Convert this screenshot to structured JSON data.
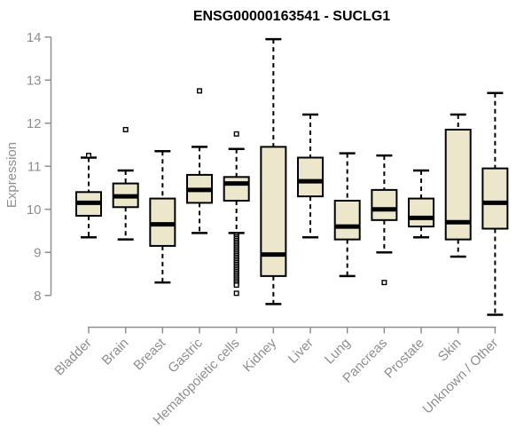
{
  "chart_data": {
    "type": "boxplot",
    "title": "ENSG00000163541 - SUCLG1",
    "ylabel": "Expression",
    "xlabel": "",
    "grid": false,
    "legend": "none",
    "ylim": [
      7.4,
      14.1
    ],
    "y_ticks": [
      8,
      9,
      10,
      11,
      12,
      13,
      14
    ],
    "categories": [
      "Bladder",
      "Brain",
      "Breast",
      "Gastric",
      "Hematopoietic cells",
      "Kidney",
      "Liver",
      "Lung",
      "Pancreas",
      "Prostate",
      "Skin",
      "Unknown / Other"
    ],
    "boxes": [
      {
        "name": "Bladder",
        "low": 9.35,
        "q1": 9.85,
        "median": 10.15,
        "q3": 10.4,
        "high": 11.2,
        "outliers": [
          11.25
        ]
      },
      {
        "name": "Brain",
        "low": 9.3,
        "q1": 10.05,
        "median": 10.3,
        "q3": 10.6,
        "high": 10.9,
        "outliers": [
          11.85
        ]
      },
      {
        "name": "Breast",
        "low": 8.3,
        "q1": 9.15,
        "median": 9.65,
        "q3": 10.25,
        "high": 11.35,
        "outliers": []
      },
      {
        "name": "Gastric",
        "low": 9.45,
        "q1": 10.15,
        "median": 10.45,
        "q3": 10.8,
        "high": 11.45,
        "outliers": [
          12.75
        ]
      },
      {
        "name": "Hematopoietic cells",
        "low": 9.45,
        "q1": 10.2,
        "median": 10.6,
        "q3": 10.75,
        "high": 11.4,
        "outliers": [
          11.75,
          9.4,
          9.36,
          9.32,
          9.28,
          9.24,
          9.2,
          9.16,
          9.12,
          9.08,
          9.04,
          9.0,
          8.96,
          8.92,
          8.88,
          8.84,
          8.8,
          8.76,
          8.72,
          8.68,
          8.64,
          8.6,
          8.56,
          8.52,
          8.48,
          8.44,
          8.4,
          8.36,
          8.32,
          8.28,
          8.24,
          8.05
        ]
      },
      {
        "name": "Kidney",
        "low": 7.8,
        "q1": 8.45,
        "median": 8.95,
        "q3": 11.45,
        "high": 13.95,
        "outliers": []
      },
      {
        "name": "Liver",
        "low": 9.35,
        "q1": 10.3,
        "median": 10.65,
        "q3": 11.2,
        "high": 12.2,
        "outliers": []
      },
      {
        "name": "Lung",
        "low": 8.45,
        "q1": 9.3,
        "median": 9.6,
        "q3": 10.2,
        "high": 11.3,
        "outliers": []
      },
      {
        "name": "Pancreas",
        "low": 9.0,
        "q1": 9.75,
        "median": 10.0,
        "q3": 10.45,
        "high": 11.25,
        "outliers": [
          8.3
        ]
      },
      {
        "name": "Prostate",
        "low": 9.35,
        "q1": 9.6,
        "median": 9.8,
        "q3": 10.25,
        "high": 10.9,
        "outliers": []
      },
      {
        "name": "Skin",
        "low": 8.9,
        "q1": 9.3,
        "median": 9.7,
        "q3": 11.85,
        "high": 12.2,
        "outliers": []
      },
      {
        "name": "Unknown / Other",
        "low": 7.55,
        "q1": 9.55,
        "median": 10.15,
        "q3": 10.95,
        "high": 12.7,
        "outliers": []
      }
    ],
    "colors": {
      "box_fill": "#ECE7CB",
      "box_stroke": "#000000",
      "median": "#000000",
      "whisker": "#000000",
      "outlier_fill": "#ffffff",
      "axis": "#8f8f8f",
      "tick_label": "#8e8e8e",
      "title": "#000000",
      "background": "#ffffff"
    }
  }
}
